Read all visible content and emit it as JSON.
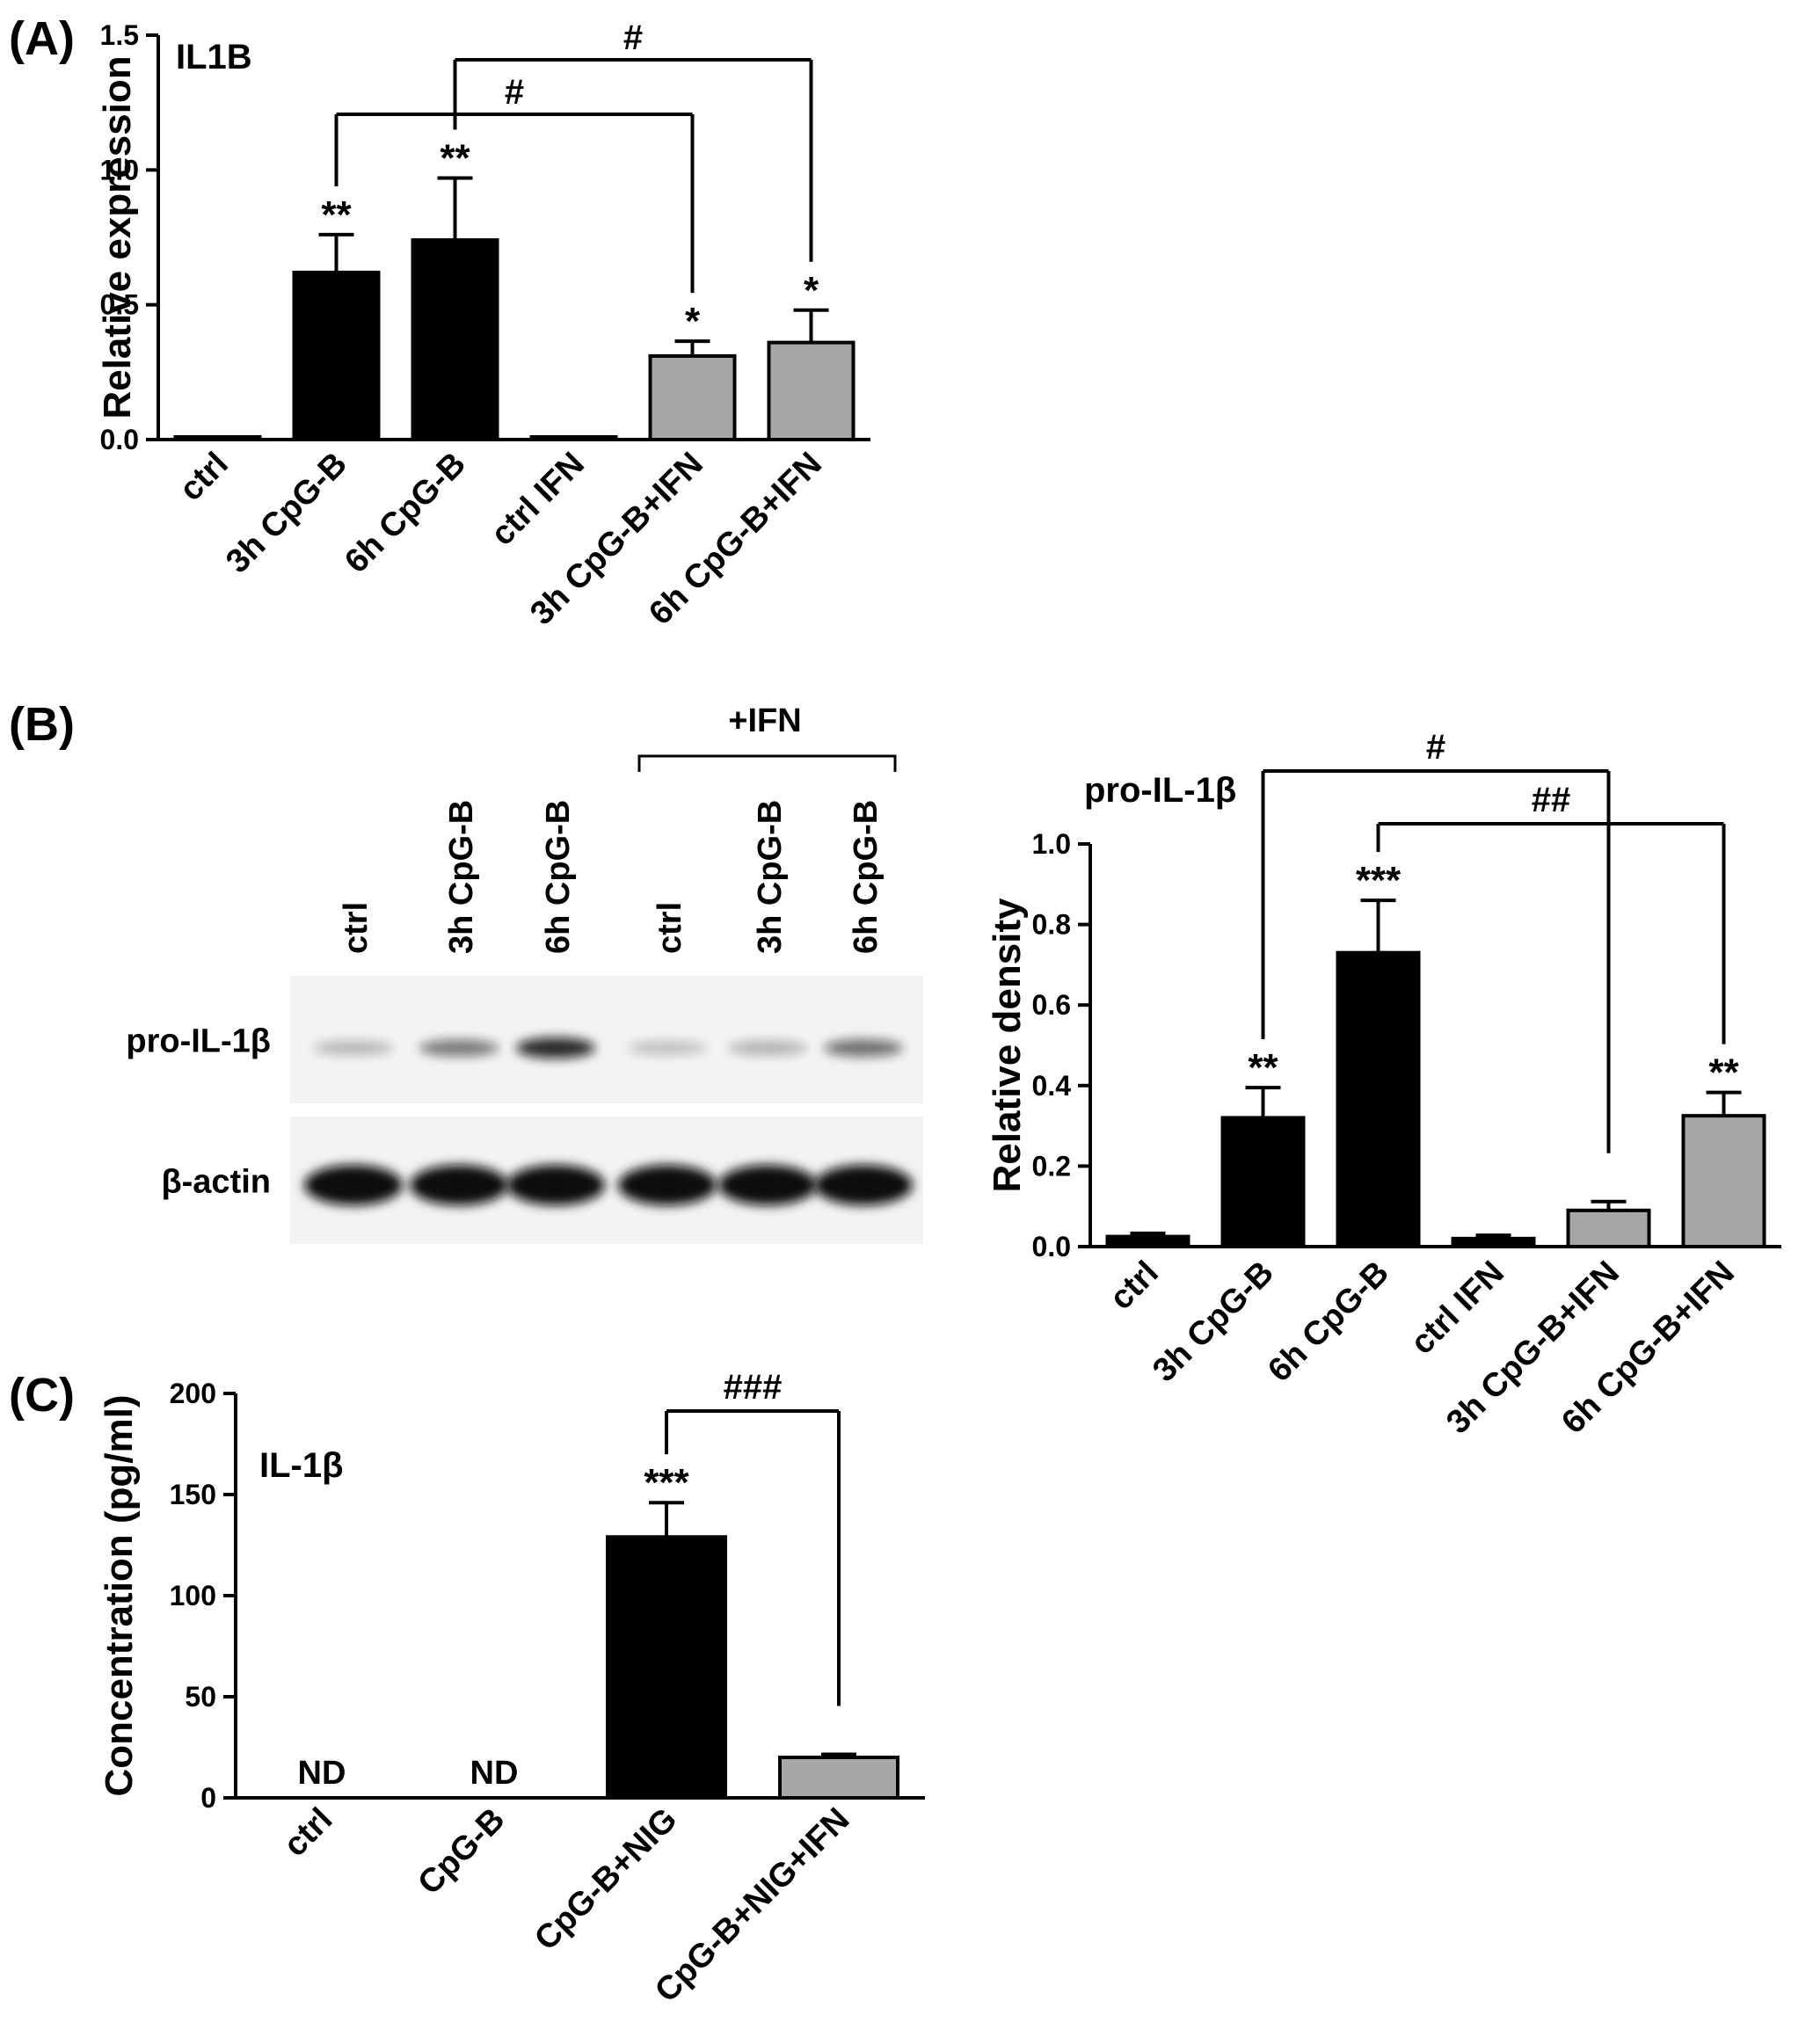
{
  "panels": {
    "A": {
      "label": "(A)"
    },
    "B": {
      "label": "(B)"
    },
    "C": {
      "label": "(C)"
    }
  },
  "blot": {
    "lanes": [
      "ctrl",
      "3h CpG-B",
      "6h CpG-B",
      "ctrl",
      "3h CpG-B",
      "6h CpG-B"
    ],
    "group_label": "+IFN",
    "rows": [
      {
        "name": "pro-IL-1β",
        "intensities": [
          0.12,
          0.38,
          0.72,
          0.08,
          0.14,
          0.42
        ]
      },
      {
        "name": "β-actin",
        "intensities": [
          1.0,
          0.95,
          0.95,
          0.95,
          0.95,
          0.92
        ]
      }
    ],
    "colors": {
      "background": "#f3f3f3",
      "band": "#111111"
    }
  },
  "chart_data": [
    {
      "type": "bar",
      "title": "IL1B",
      "ylabel": "Relative expression",
      "categories": [
        "ctrl",
        "3h CpG-B",
        "6h CpG-B",
        "ctrl IFN",
        "3h CpG-B+IFN",
        "6h CpG-B+IFN"
      ],
      "values": [
        0.005,
        0.62,
        0.74,
        0.005,
        0.31,
        0.36
      ],
      "errors": [
        0.0,
        0.14,
        0.23,
        0.0,
        0.055,
        0.12
      ],
      "colors": [
        "#000000",
        "#000000",
        "#000000",
        "#000000",
        "#a7a7a7",
        "#a7a7a7"
      ],
      "ylim": [
        0,
        1.5
      ],
      "yticks": [
        0.0,
        0.5,
        1.0,
        1.5
      ],
      "ytick_labels": [
        "0.0",
        "0.5",
        "1.0",
        "1.5"
      ],
      "annotations": [
        "",
        "**",
        "**",
        "",
        "*",
        "*"
      ],
      "brackets": [
        {
          "from": 1,
          "to": 4,
          "label": "#"
        },
        {
          "from": 2,
          "to": 5,
          "label": "#"
        }
      ]
    },
    {
      "type": "bar",
      "title": "pro-IL-1β",
      "ylabel": "Relative density",
      "categories": [
        "ctrl",
        "3h CpG-B",
        "6h CpG-B",
        "ctrl IFN",
        "3h CpG-B+IFN",
        "6h CpG-B+IFN"
      ],
      "values": [
        0.025,
        0.32,
        0.73,
        0.02,
        0.09,
        0.325
      ],
      "errors": [
        0.008,
        0.075,
        0.13,
        0.008,
        0.022,
        0.058
      ],
      "colors": [
        "#000000",
        "#000000",
        "#000000",
        "#000000",
        "#a7a7a7",
        "#a7a7a7"
      ],
      "ylim": [
        0,
        1.0
      ],
      "yticks": [
        0.0,
        0.2,
        0.4,
        0.6,
        0.8,
        1.0
      ],
      "ytick_labels": [
        "0.0",
        "0.2",
        "0.4",
        "0.6",
        "0.8",
        "1.0"
      ],
      "annotations": [
        "",
        "**",
        "***",
        "",
        "",
        "**"
      ],
      "brackets": [
        {
          "from": 1,
          "to": 4,
          "label": "#"
        },
        {
          "from": 2,
          "to": 5,
          "label": "##"
        }
      ]
    },
    {
      "type": "bar",
      "title": "IL-1β",
      "ylabel": "Concentration (pg/ml)",
      "categories": [
        "ctrl",
        "CpG-B",
        "CpG-B+NIG",
        "CpG-B+NIG+IFN"
      ],
      "values": [
        0,
        0,
        129,
        20
      ],
      "errors": [
        0,
        0,
        17,
        1.5
      ],
      "colors": [
        "#000000",
        "#000000",
        "#000000",
        "#a7a7a7"
      ],
      "ylim": [
        0,
        200
      ],
      "yticks": [
        0,
        50,
        100,
        150,
        200
      ],
      "ytick_labels": [
        "0",
        "50",
        "100",
        "150",
        "200"
      ],
      "annotations": [
        "",
        "",
        "***",
        ""
      ],
      "value_labels": [
        "ND",
        "ND",
        "",
        ""
      ],
      "brackets": [
        {
          "from": 2,
          "to": 3,
          "label": "###"
        }
      ]
    }
  ]
}
